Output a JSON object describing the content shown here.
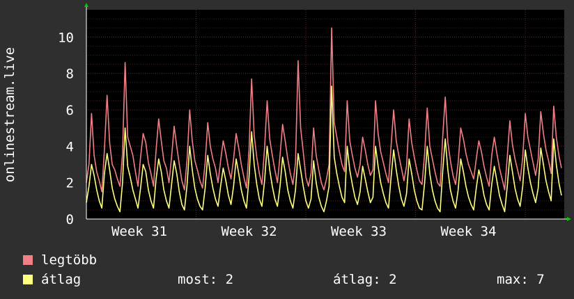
{
  "chart_data": {
    "type": "line",
    "ylabel": "onlinestream.live",
    "ylim": [
      0,
      11.5
    ],
    "yticks": [
      0,
      2,
      4,
      6,
      8,
      10
    ],
    "xticks": [
      "Week 31",
      "Week 32",
      "Week 33",
      "Week 34"
    ],
    "grid": true,
    "legend_position": "bottom-left",
    "colors": {
      "background": "#2f2f2f",
      "plot": "#000000",
      "grid": "#5a2a2a",
      "axis": "#ffffff",
      "arrow": "#00cc00"
    },
    "series": [
      {
        "name": "legtöbb",
        "color": "#f07f86",
        "values": [
          2,
          3,
          5.8,
          3.5,
          2.6,
          2.1,
          1.5,
          3.8,
          6.8,
          4.2,
          3.0,
          2.7,
          2.2,
          1.8,
          3.6,
          8.6,
          4.5,
          4.0,
          3.5,
          2.6,
          1.8,
          3.4,
          4.7,
          4.2,
          3.1,
          2.5,
          1.8,
          3.8,
          5.5,
          4.3,
          3.2,
          2.8,
          2.0,
          3.4,
          5.1,
          4.0,
          3.0,
          2.1,
          1.6,
          3.3,
          6.0,
          4.3,
          3.2,
          2.7,
          2.1,
          1.7,
          3.1,
          5.3,
          4.0,
          3.3,
          2.8,
          2.0,
          3.2,
          4.3,
          3.6,
          2.8,
          2.2,
          3.3,
          4.7,
          3.9,
          3.0,
          2.3,
          1.7,
          3.8,
          7.7,
          4.6,
          3.4,
          2.5,
          1.9,
          3.9,
          6.5,
          4.4,
          3.5,
          2.7,
          2.0,
          3.5,
          5.2,
          4.3,
          3.3,
          2.5,
          1.9,
          3.1,
          8.7,
          5.0,
          3.7,
          2.3,
          1.8,
          2.5,
          5.0,
          3.5,
          2.7,
          2.0,
          1.6,
          2.2,
          3.0,
          10.5,
          5.3,
          4.5,
          3.7,
          3.0,
          2.6,
          6.5,
          4.3,
          3.5,
          2.8,
          2.3,
          3.0,
          4.5,
          3.8,
          3.0,
          2.4,
          2.7,
          6.5,
          4.7,
          3.7,
          3.1,
          2.5,
          2.0,
          4.0,
          6.0,
          4.3,
          3.5,
          2.8,
          2.1,
          2.9,
          5.5,
          4.2,
          3.4,
          2.7,
          2.1,
          1.9,
          3.6,
          6.1,
          4.0,
          3.3,
          2.6,
          2.0,
          1.8,
          4.5,
          6.7,
          4.2,
          3.2,
          2.4,
          1.9,
          3.1,
          5.0,
          4.4,
          3.6,
          3.0,
          2.6,
          2.2,
          3.3,
          4.3,
          3.7,
          2.9,
          2.3,
          1.8,
          3.5,
          4.5,
          3.6,
          2.8,
          2.2,
          1.6,
          3.4,
          5.4,
          4.1,
          3.3,
          2.7,
          2.1,
          3.4,
          5.8,
          4.5,
          3.8,
          3.1,
          2.4,
          3.3,
          5.9,
          4.7,
          3.8,
          3.2,
          2.5,
          6.2,
          4.5,
          3.5,
          2.8
        ]
      },
      {
        "name": "átlag",
        "color": "#ffff80",
        "values": [
          0.9,
          1.8,
          3.0,
          2.4,
          1.6,
          1.0,
          0.6,
          2.5,
          3.6,
          2.7,
          1.7,
          1.1,
          0.7,
          0.4,
          2.0,
          5.0,
          2.9,
          2.3,
          1.6,
          1.1,
          0.6,
          1.7,
          3.0,
          2.6,
          1.6,
          1.0,
          0.6,
          2.2,
          3.3,
          2.6,
          1.6,
          1.0,
          0.6,
          1.9,
          3.2,
          2.5,
          1.5,
          0.8,
          0.5,
          1.9,
          4.0,
          2.7,
          1.7,
          1.1,
          0.7,
          0.5,
          1.7,
          3.5,
          2.5,
          1.7,
          1.1,
          0.7,
          1.8,
          2.8,
          2.1,
          1.3,
          0.8,
          1.8,
          3.3,
          2.5,
          1.6,
          1.0,
          0.6,
          2.3,
          4.8,
          3.0,
          1.9,
          1.1,
          0.7,
          2.1,
          4.0,
          2.7,
          1.8,
          1.1,
          0.7,
          1.8,
          3.4,
          2.6,
          1.6,
          1.0,
          0.6,
          1.6,
          3.6,
          2.7,
          1.8,
          1.0,
          0.6,
          1.1,
          3.2,
          2.0,
          1.2,
          0.7,
          0.4,
          1.0,
          1.8,
          7.3,
          3.4,
          2.5,
          1.8,
          1.2,
          0.9,
          4.0,
          2.7,
          1.9,
          1.2,
          0.8,
          1.5,
          2.9,
          2.2,
          1.5,
          0.9,
          1.2,
          4.0,
          2.9,
          2.0,
          1.4,
          0.9,
          0.6,
          2.3,
          3.8,
          2.7,
          1.8,
          1.1,
          0.7,
          1.4,
          3.3,
          2.5,
          1.6,
          1.0,
          0.6,
          0.5,
          2.0,
          4.0,
          2.5,
          1.6,
          1.0,
          0.6,
          0.4,
          2.6,
          4.4,
          2.7,
          1.6,
          1.0,
          0.6,
          1.6,
          3.3,
          2.6,
          1.8,
          1.2,
          0.8,
          0.5,
          1.7,
          2.7,
          2.1,
          1.3,
          0.8,
          0.5,
          1.9,
          2.9,
          2.1,
          1.3,
          0.8,
          0.4,
          1.8,
          3.5,
          2.6,
          1.7,
          1.1,
          0.7,
          1.8,
          3.8,
          2.8,
          2.0,
          1.4,
          0.9,
          1.7,
          3.9,
          3.0,
          2.1,
          1.5,
          1.0,
          4.4,
          3.0,
          2.0,
          1.3
        ]
      }
    ]
  },
  "legend": {
    "max_label": "legtöbb",
    "avg_label": "átlag",
    "stats": {
      "now_label": "most:",
      "now_value": "2",
      "avg_label": "átlag:",
      "avg_value": "2",
      "max_label": "max:",
      "max_value": "7"
    }
  }
}
